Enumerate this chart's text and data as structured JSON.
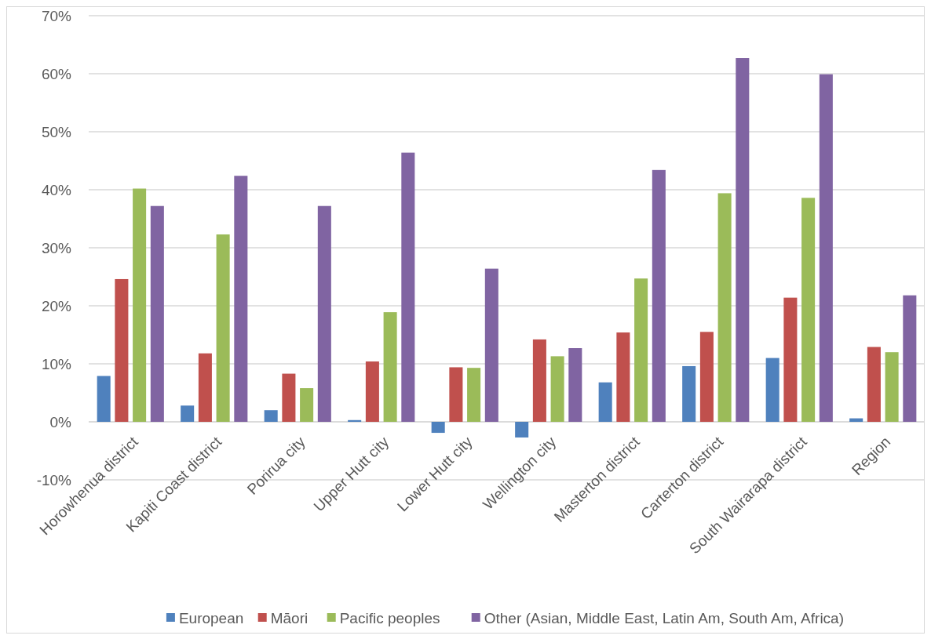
{
  "chart_data": {
    "type": "bar",
    "categories": [
      "Horowhenua district",
      "Kapiti Coast district",
      "Porirua city",
      "Upper Hutt city",
      "Lower Hutt city",
      "Wellington city",
      "Masterton district",
      "Carterton district",
      "South Wairarapa district",
      "Region"
    ],
    "series": [
      {
        "name": "European",
        "color": "#4f81bd",
        "values": [
          7.9,
          2.8,
          2.0,
          0.3,
          -1.9,
          -2.7,
          6.8,
          9.6,
          11.0,
          0.6
        ]
      },
      {
        "name": "Māori",
        "color": "#c0504d",
        "values": [
          24.6,
          11.8,
          8.3,
          10.4,
          9.4,
          14.2,
          15.4,
          15.5,
          21.4,
          12.9
        ]
      },
      {
        "name": "Pacific peoples",
        "color": "#9bbb59",
        "values": [
          40.2,
          32.3,
          5.8,
          18.9,
          9.3,
          11.3,
          24.7,
          39.4,
          38.6,
          12.0
        ]
      },
      {
        "name": "Other (Asian, Middle East, Latin Am, South Am, Africa)",
        "color": "#8064a2",
        "values": [
          37.2,
          42.4,
          37.2,
          46.4,
          26.4,
          12.7,
          43.4,
          62.7,
          59.9,
          21.8
        ]
      }
    ],
    "ylim": [
      -10,
      70
    ],
    "yticks": [
      {
        "value": -10,
        "label": "-10%"
      },
      {
        "value": 0,
        "label": "0%"
      },
      {
        "value": 10,
        "label": "10%"
      },
      {
        "value": 20,
        "label": "20%"
      },
      {
        "value": 30,
        "label": "30%"
      },
      {
        "value": 40,
        "label": "40%"
      },
      {
        "value": 50,
        "label": "50%"
      },
      {
        "value": 60,
        "label": "60%"
      },
      {
        "value": 70,
        "label": "70%"
      }
    ],
    "grid": "y",
    "legend": "bottom"
  }
}
